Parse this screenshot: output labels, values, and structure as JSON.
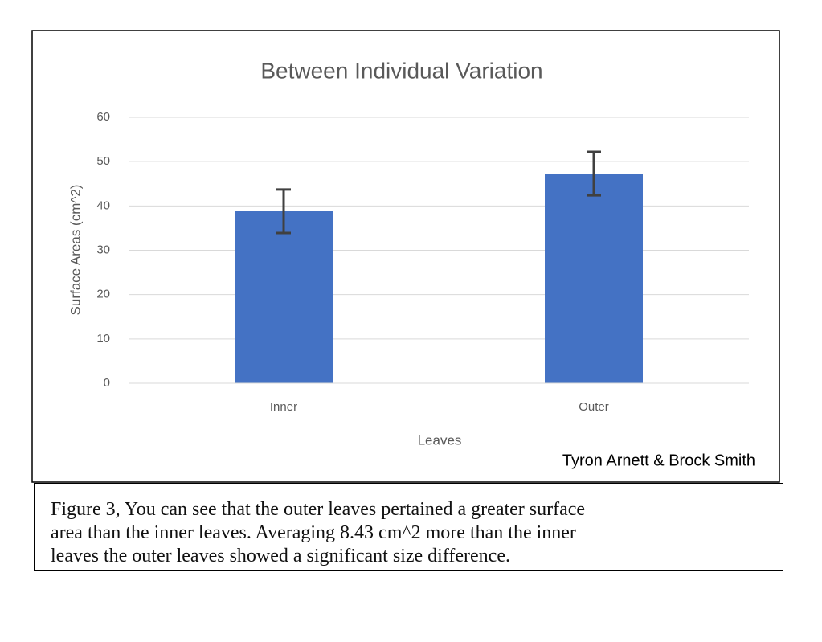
{
  "chart_data": {
    "type": "bar",
    "title": "Between Individual Variation",
    "xlabel": "Leaves",
    "ylabel": "Surface Areas (cm^2)",
    "categories": [
      "Inner",
      "Outer"
    ],
    "values": [
      38.8,
      47.3
    ],
    "errors": [
      4.9,
      4.9
    ],
    "color": "#4472c4",
    "error_color": "#404040",
    "ylim": [
      0,
      60
    ],
    "yticks": [
      0,
      10,
      20,
      30,
      40,
      50,
      60
    ],
    "grid": true,
    "annotation": "Tyron Arnett & Brock Smith"
  },
  "caption": [
    "Figure 3, You can see that the outer leaves pertained a greater surface",
    "area than the inner leaves. Averaging 8.43 cm^2 more than the inner",
    "leaves the outer leaves showed a significant size difference."
  ]
}
